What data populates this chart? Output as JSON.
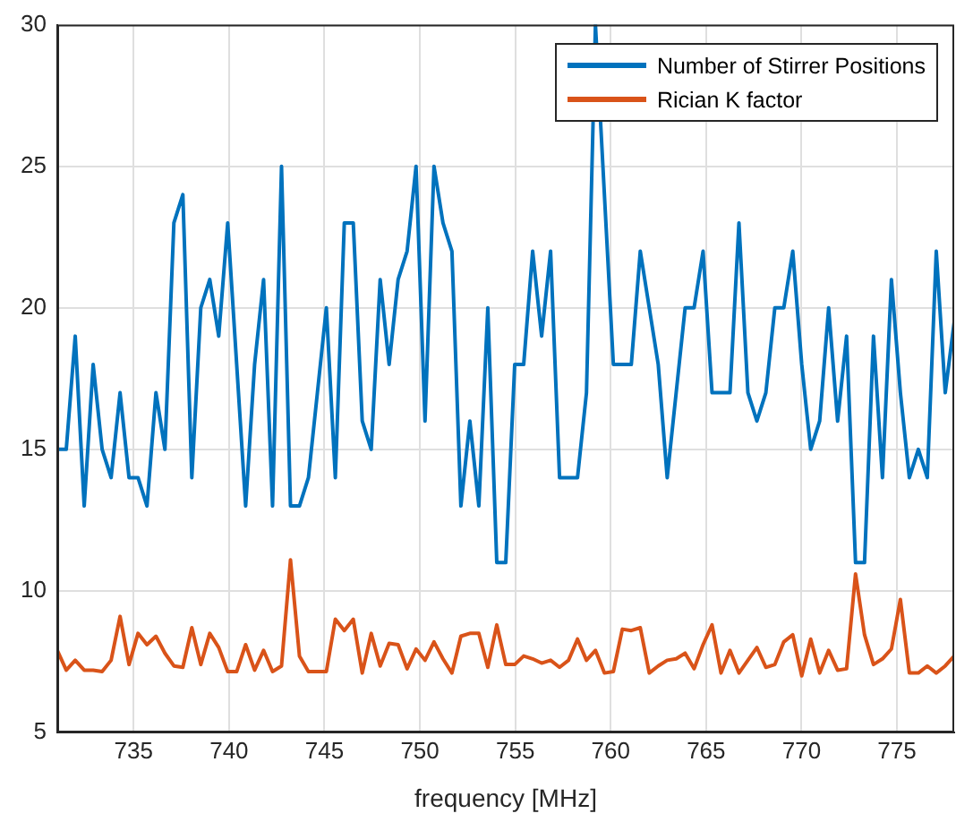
{
  "chart_data": {
    "type": "line",
    "xlabel": "frequency [MHz]",
    "x": [
      731,
      731.47,
      731.94,
      732.41,
      732.88,
      733.35,
      733.82,
      734.29,
      734.76,
      735.23,
      735.7,
      736.17,
      736.64,
      737.11,
      737.58,
      738.05,
      738.52,
      738.99,
      739.46,
      739.93,
      740.4,
      740.87,
      741.34,
      741.81,
      742.28,
      742.75,
      743.22,
      743.69,
      744.16,
      744.63,
      745.1,
      745.57,
      746.04,
      746.51,
      746.98,
      747.45,
      747.92,
      748.39,
      748.86,
      749.33,
      749.8,
      750.27,
      750.74,
      751.21,
      751.68,
      752.15,
      752.62,
      753.09,
      753.56,
      754.03,
      754.5,
      754.97,
      755.44,
      755.91,
      756.38,
      756.85,
      757.32,
      757.79,
      758.26,
      758.73,
      759.2,
      759.67,
      760.14,
      760.61,
      761.08,
      761.55,
      762.02,
      762.49,
      762.96,
      763.43,
      763.9,
      764.37,
      764.84,
      765.31,
      765.78,
      766.25,
      766.72,
      767.19,
      767.66,
      768.13,
      768.6,
      769.07,
      769.54,
      770.01,
      770.48,
      770.95,
      771.42,
      771.89,
      772.36,
      772.83,
      773.3,
      773.77,
      774.24,
      774.71,
      775.18,
      775.65,
      776.12,
      776.59,
      777.06,
      777.53,
      778
    ],
    "series": [
      {
        "name": "Number of Stirrer Positions",
        "color": "#0072bd",
        "values": [
          15,
          15,
          19,
          13,
          18,
          15,
          14,
          17,
          14,
          14,
          13,
          17,
          15,
          23,
          24,
          14,
          20,
          21,
          19,
          23,
          18,
          13,
          18,
          21,
          13,
          25,
          13,
          13,
          14,
          17,
          20,
          14,
          23,
          23,
          16,
          15,
          21,
          18,
          21,
          22,
          25,
          16,
          25,
          23,
          22,
          13,
          16,
          13,
          20,
          11,
          11,
          18,
          18,
          22,
          19,
          22,
          14,
          14,
          14,
          17,
          30,
          null,
          18,
          18,
          18,
          22,
          20,
          18,
          14,
          17,
          20,
          20,
          22,
          17,
          17,
          17,
          23,
          17,
          16,
          17,
          20,
          20,
          22,
          18,
          15,
          16,
          20,
          16,
          19,
          11,
          11,
          19,
          14,
          21,
          17,
          14,
          15,
          14,
          22,
          17,
          19.5
        ]
      },
      {
        "name": "Rician K factor",
        "color": "#d95319",
        "values": [
          7.9,
          7.2,
          7.55,
          7.2,
          7.2,
          7.15,
          7.55,
          9.1,
          7.4,
          8.5,
          8.1,
          8.4,
          7.8,
          7.35,
          7.3,
          8.7,
          7.4,
          8.5,
          8.0,
          7.15,
          7.15,
          8.1,
          7.2,
          7.9,
          7.15,
          7.35,
          11.1,
          7.7,
          7.15,
          7.15,
          7.15,
          9.0,
          8.6,
          9.0,
          7.1,
          8.5,
          7.35,
          8.15,
          8.1,
          7.25,
          7.95,
          7.55,
          8.2,
          7.6,
          7.1,
          8.4,
          8.5,
          8.5,
          7.3,
          8.8,
          7.4,
          7.4,
          7.7,
          7.6,
          7.45,
          7.55,
          7.3,
          7.55,
          8.3,
          7.55,
          7.9,
          7.1,
          7.15,
          8.65,
          8.6,
          8.7,
          7.1,
          7.35,
          7.55,
          7.6,
          7.8,
          7.25,
          8.1,
          8.8,
          7.1,
          7.9,
          7.1,
          7.55,
          8.0,
          7.3,
          7.4,
          8.2,
          8.45,
          7.0,
          8.3,
          7.1,
          7.9,
          7.2,
          7.25,
          10.6,
          8.45,
          7.4,
          7.6,
          7.95,
          9.7,
          7.1,
          7.1,
          7.35,
          7.1,
          7.35,
          7.7
        ]
      }
    ],
    "xlim": [
      731,
      778
    ],
    "xticks": [
      735,
      740,
      745,
      750,
      755,
      760,
      765,
      770,
      775
    ],
    "ylim": [
      5,
      30
    ],
    "yticks": [
      5,
      10,
      15,
      20,
      25,
      30
    ],
    "grid": true,
    "legend": "top right",
    "line_style": "solid",
    "marker": "none"
  }
}
